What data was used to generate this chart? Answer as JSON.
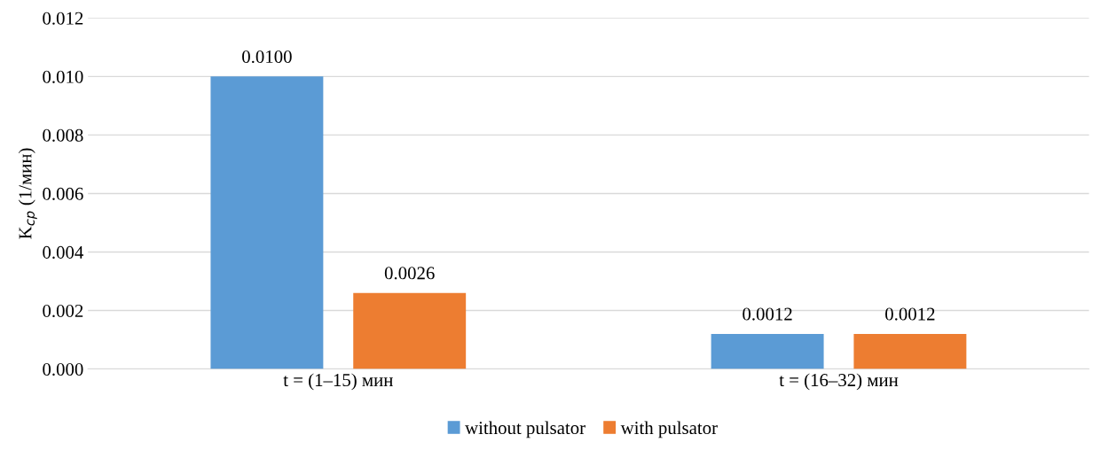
{
  "chart_data": {
    "type": "bar",
    "ylabel": "K$_{ср}$ (1/мин)",
    "categories": [
      "t = (1–15) мин",
      "t = (16–32) мин"
    ],
    "series": [
      {
        "name": "without pulsator",
        "color": "#5b9bd5",
        "values": [
          0.01,
          0.0012
        ],
        "value_labels": [
          "0.0100",
          "0.0012"
        ]
      },
      {
        "name": "with pulsator",
        "color": "#ed7d31",
        "values": [
          0.0026,
          0.0012
        ],
        "value_labels": [
          "0.0026",
          "0.0012"
        ]
      }
    ],
    "ylim": [
      0,
      0.012
    ],
    "yticks": [
      {
        "value": 0,
        "label": "0.000"
      },
      {
        "value": 0.002,
        "label": "0.002"
      },
      {
        "value": 0.004,
        "label": "0.004"
      },
      {
        "value": 0.006,
        "label": "0.006"
      },
      {
        "value": 0.008,
        "label": "0.008"
      },
      {
        "value": 0.01,
        "label": "0.010"
      },
      {
        "value": 0.012,
        "label": "0.012"
      }
    ],
    "grid": "y",
    "legend": "bottom"
  }
}
